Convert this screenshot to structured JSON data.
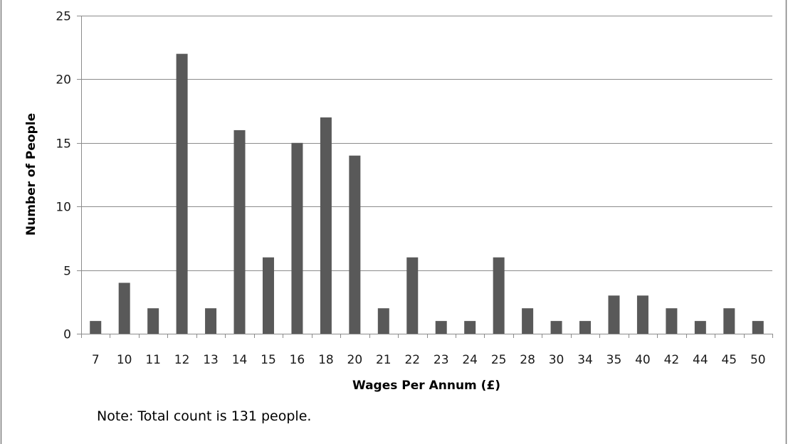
{
  "chart_data": {
    "type": "bar",
    "title": "",
    "xlabel": "Wages Per Annum (£)",
    "ylabel": "Number of People",
    "note": "Note: Total  count is 131 people.",
    "categories": [
      "7",
      "10",
      "11",
      "12",
      "13",
      "14",
      "15",
      "16",
      "18",
      "20",
      "21",
      "22",
      "23",
      "24",
      "25",
      "28",
      "30",
      "34",
      "35",
      "40",
      "42",
      "44",
      "45",
      "50"
    ],
    "values": [
      1,
      4,
      2,
      22,
      2,
      16,
      6,
      15,
      17,
      14,
      2,
      6,
      1,
      1,
      6,
      2,
      1,
      1,
      3,
      3,
      2,
      1,
      2,
      1
    ],
    "ylim": [
      0,
      25
    ],
    "yticks": [
      "0",
      "5",
      "10",
      "15",
      "20",
      "25"
    ],
    "grid": true,
    "legend": "none",
    "colors": {
      "bar": "#595959",
      "grid": "#8c8c8c",
      "axis": "#8c8c8c",
      "frame": "#7f7f7f"
    }
  }
}
